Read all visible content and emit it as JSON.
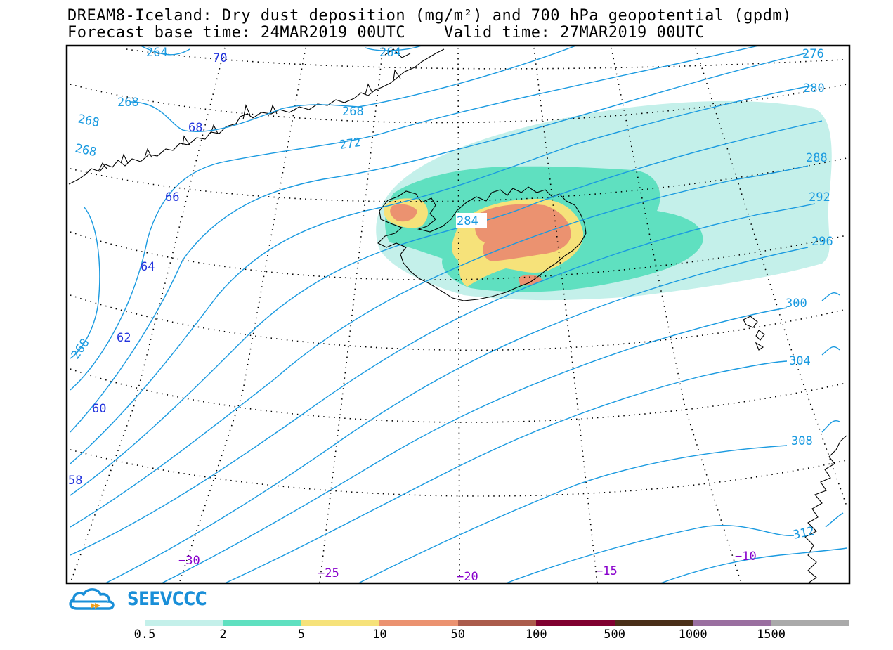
{
  "title_line1": "DREAM8-Iceland: Dry dust deposition (mg/m²) and 700 hPa geopotential (gpdm)",
  "title_line2": "Forecast base time: 24MAR2019 00UTC    Valid time: 27MAR2019 00UTC",
  "logo_text": "SEEVCCC",
  "colors": {
    "contour": "#1a9ae0",
    "lat_label": "#2233dd",
    "lon_label": "#8800cc",
    "coast": "#000000"
  },
  "legend": {
    "bins": [
      {
        "label": "0.5",
        "color": "#c4f0ea"
      },
      {
        "label": "2",
        "color": "#5fe0c0"
      },
      {
        "label": "5",
        "color": "#f6e27a"
      },
      {
        "label": "10",
        "color": "#eb9270"
      },
      {
        "label": "50",
        "color": "#ab5c4c"
      },
      {
        "label": "100",
        "color": "#800030"
      },
      {
        "label": "500",
        "color": "#4a2f18"
      },
      {
        "label": "1000",
        "color": "#9a6fa0"
      },
      {
        "label": "1500",
        "color": "#aaaaaa"
      }
    ]
  },
  "geopotential_labels": [
    "264",
    "264",
    "268",
    "268",
    "268",
    "268",
    "268",
    "272",
    "276",
    "280",
    "284",
    "288",
    "292",
    "296",
    "300",
    "304",
    "308",
    "312"
  ],
  "latitude_labels": [
    "70",
    "68",
    "66",
    "64",
    "62",
    "60",
    "58"
  ],
  "longitude_labels": [
    "−30",
    "−25",
    "−20",
    "−15",
    "−10"
  ]
}
